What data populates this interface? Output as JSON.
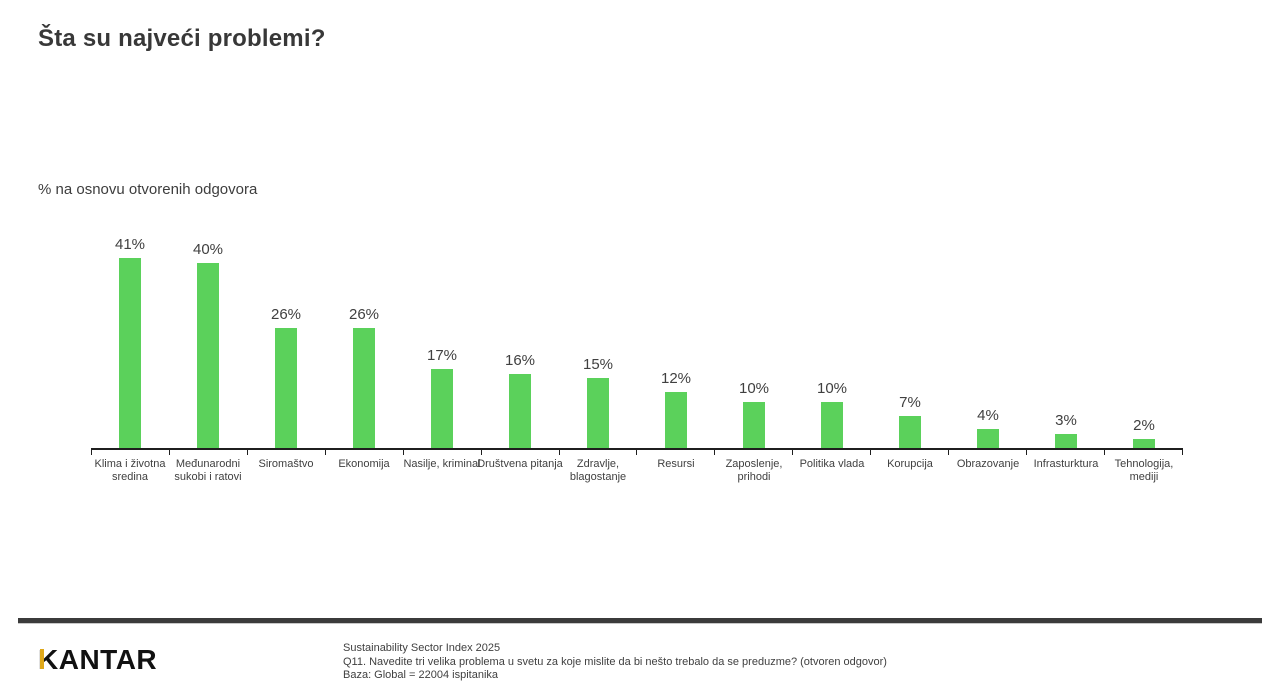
{
  "page": {
    "title": "Šta su najveći problemi?",
    "subtitle": "% na osnovu otvorenih odgovora"
  },
  "chart_data": {
    "type": "bar",
    "title": "Šta su najveći problemi?",
    "subtitle": "% na osnovu otvorenih odgovora",
    "unit": "%",
    "categories": [
      "Klima i životna sredina",
      "Međunarodni sukobi i ratovi",
      "Siromaštvo",
      "Ekonomija",
      "Nasilje, kriminal",
      "Društvena pitanja",
      "Zdravlje, blagostanje",
      "Resursi",
      "Zaposlenje, prihodi",
      "Politika vlada",
      "Korupcija",
      "Obrazovanje",
      "Infrasturktura",
      "Tehnologija, mediji"
    ],
    "values": [
      41,
      40,
      26,
      26,
      17,
      16,
      15,
      12,
      10,
      10,
      7,
      4,
      3,
      2
    ],
    "value_labels": [
      "41%",
      "40%",
      "26%",
      "26%",
      "17%",
      "16%",
      "15%",
      "12%",
      "10%",
      "10%",
      "7%",
      "4%",
      "3%",
      "2%"
    ],
    "bar_color": "#5BD15B",
    "xlabel": "",
    "ylabel": "",
    "ylim": [
      0,
      45
    ],
    "grid": false,
    "legend": false,
    "data_labels": "above-bars"
  },
  "footer": {
    "logo_text": "KANTAR",
    "source_lines": [
      "Sustainability Sector Index 2025",
      "Q11. Navedite tri velika problema u svetu za koje mislite da bi nešto trebalo da se preduzme? (otvoren odgovor)",
      "Baza: Global = 22004 ispitanika"
    ]
  },
  "colors": {
    "bar_green": "#5BD15B",
    "logo_gold": "#DFA819",
    "divider_dark": "#3B3B3B",
    "text_dark": "#404040"
  }
}
